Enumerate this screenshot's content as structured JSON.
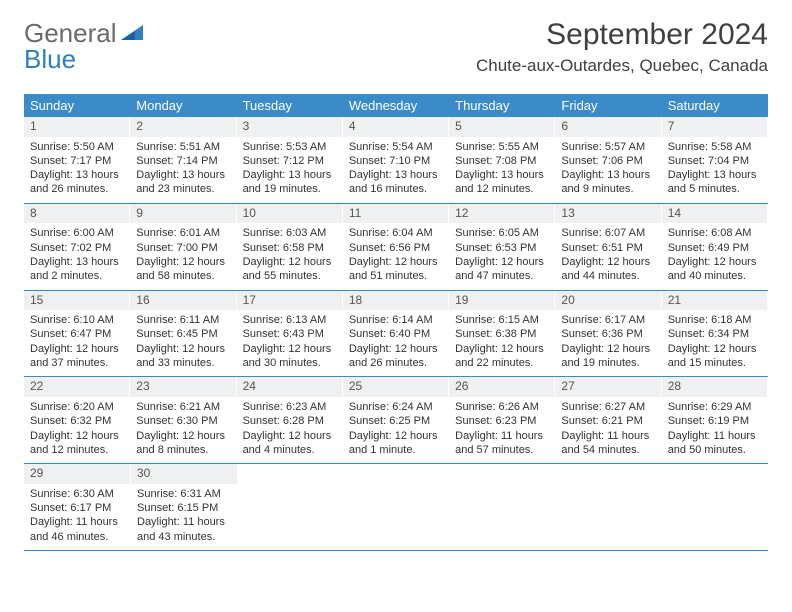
{
  "logo": {
    "text1": "General",
    "text2": "Blue"
  },
  "title": "September 2024",
  "location": "Chute-aux-Outardes, Quebec, Canada",
  "colors": {
    "header_bg": "#3b8bc9",
    "header_text": "#ffffff",
    "daynum_bg": "#eef0f1",
    "border": "#3b8bc9",
    "logo_gray": "#6a6a6a",
    "logo_blue": "#2f7fc3",
    "title_color": "#404040",
    "body_text": "#333333",
    "page_bg": "#ffffff"
  },
  "dayNames": [
    "Sunday",
    "Monday",
    "Tuesday",
    "Wednesday",
    "Thursday",
    "Friday",
    "Saturday"
  ],
  "days": [
    {
      "n": "1",
      "sr": "Sunrise: 5:50 AM",
      "ss": "Sunset: 7:17 PM",
      "dl": "Daylight: 13 hours and 26 minutes."
    },
    {
      "n": "2",
      "sr": "Sunrise: 5:51 AM",
      "ss": "Sunset: 7:14 PM",
      "dl": "Daylight: 13 hours and 23 minutes."
    },
    {
      "n": "3",
      "sr": "Sunrise: 5:53 AM",
      "ss": "Sunset: 7:12 PM",
      "dl": "Daylight: 13 hours and 19 minutes."
    },
    {
      "n": "4",
      "sr": "Sunrise: 5:54 AM",
      "ss": "Sunset: 7:10 PM",
      "dl": "Daylight: 13 hours and 16 minutes."
    },
    {
      "n": "5",
      "sr": "Sunrise: 5:55 AM",
      "ss": "Sunset: 7:08 PM",
      "dl": "Daylight: 13 hours and 12 minutes."
    },
    {
      "n": "6",
      "sr": "Sunrise: 5:57 AM",
      "ss": "Sunset: 7:06 PM",
      "dl": "Daylight: 13 hours and 9 minutes."
    },
    {
      "n": "7",
      "sr": "Sunrise: 5:58 AM",
      "ss": "Sunset: 7:04 PM",
      "dl": "Daylight: 13 hours and 5 minutes."
    },
    {
      "n": "8",
      "sr": "Sunrise: 6:00 AM",
      "ss": "Sunset: 7:02 PM",
      "dl": "Daylight: 13 hours and 2 minutes."
    },
    {
      "n": "9",
      "sr": "Sunrise: 6:01 AM",
      "ss": "Sunset: 7:00 PM",
      "dl": "Daylight: 12 hours and 58 minutes."
    },
    {
      "n": "10",
      "sr": "Sunrise: 6:03 AM",
      "ss": "Sunset: 6:58 PM",
      "dl": "Daylight: 12 hours and 55 minutes."
    },
    {
      "n": "11",
      "sr": "Sunrise: 6:04 AM",
      "ss": "Sunset: 6:56 PM",
      "dl": "Daylight: 12 hours and 51 minutes."
    },
    {
      "n": "12",
      "sr": "Sunrise: 6:05 AM",
      "ss": "Sunset: 6:53 PM",
      "dl": "Daylight: 12 hours and 47 minutes."
    },
    {
      "n": "13",
      "sr": "Sunrise: 6:07 AM",
      "ss": "Sunset: 6:51 PM",
      "dl": "Daylight: 12 hours and 44 minutes."
    },
    {
      "n": "14",
      "sr": "Sunrise: 6:08 AM",
      "ss": "Sunset: 6:49 PM",
      "dl": "Daylight: 12 hours and 40 minutes."
    },
    {
      "n": "15",
      "sr": "Sunrise: 6:10 AM",
      "ss": "Sunset: 6:47 PM",
      "dl": "Daylight: 12 hours and 37 minutes."
    },
    {
      "n": "16",
      "sr": "Sunrise: 6:11 AM",
      "ss": "Sunset: 6:45 PM",
      "dl": "Daylight: 12 hours and 33 minutes."
    },
    {
      "n": "17",
      "sr": "Sunrise: 6:13 AM",
      "ss": "Sunset: 6:43 PM",
      "dl": "Daylight: 12 hours and 30 minutes."
    },
    {
      "n": "18",
      "sr": "Sunrise: 6:14 AM",
      "ss": "Sunset: 6:40 PM",
      "dl": "Daylight: 12 hours and 26 minutes."
    },
    {
      "n": "19",
      "sr": "Sunrise: 6:15 AM",
      "ss": "Sunset: 6:38 PM",
      "dl": "Daylight: 12 hours and 22 minutes."
    },
    {
      "n": "20",
      "sr": "Sunrise: 6:17 AM",
      "ss": "Sunset: 6:36 PM",
      "dl": "Daylight: 12 hours and 19 minutes."
    },
    {
      "n": "21",
      "sr": "Sunrise: 6:18 AM",
      "ss": "Sunset: 6:34 PM",
      "dl": "Daylight: 12 hours and 15 minutes."
    },
    {
      "n": "22",
      "sr": "Sunrise: 6:20 AM",
      "ss": "Sunset: 6:32 PM",
      "dl": "Daylight: 12 hours and 12 minutes."
    },
    {
      "n": "23",
      "sr": "Sunrise: 6:21 AM",
      "ss": "Sunset: 6:30 PM",
      "dl": "Daylight: 12 hours and 8 minutes."
    },
    {
      "n": "24",
      "sr": "Sunrise: 6:23 AM",
      "ss": "Sunset: 6:28 PM",
      "dl": "Daylight: 12 hours and 4 minutes."
    },
    {
      "n": "25",
      "sr": "Sunrise: 6:24 AM",
      "ss": "Sunset: 6:25 PM",
      "dl": "Daylight: 12 hours and 1 minute."
    },
    {
      "n": "26",
      "sr": "Sunrise: 6:26 AM",
      "ss": "Sunset: 6:23 PM",
      "dl": "Daylight: 11 hours and 57 minutes."
    },
    {
      "n": "27",
      "sr": "Sunrise: 6:27 AM",
      "ss": "Sunset: 6:21 PM",
      "dl": "Daylight: 11 hours and 54 minutes."
    },
    {
      "n": "28",
      "sr": "Sunrise: 6:29 AM",
      "ss": "Sunset: 6:19 PM",
      "dl": "Daylight: 11 hours and 50 minutes."
    },
    {
      "n": "29",
      "sr": "Sunrise: 6:30 AM",
      "ss": "Sunset: 6:17 PM",
      "dl": "Daylight: 11 hours and 46 minutes."
    },
    {
      "n": "30",
      "sr": "Sunrise: 6:31 AM",
      "ss": "Sunset: 6:15 PM",
      "dl": "Daylight: 11 hours and 43 minutes."
    }
  ]
}
